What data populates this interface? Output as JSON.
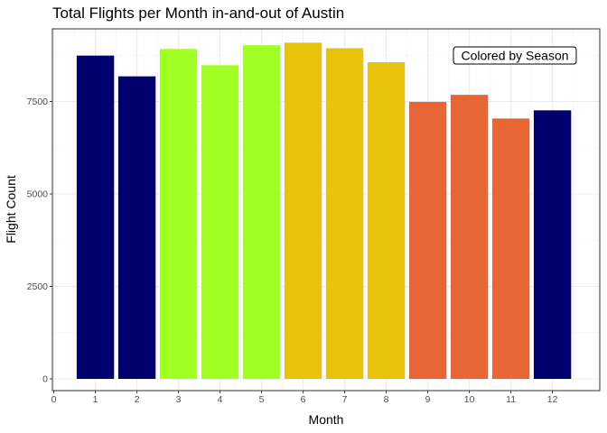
{
  "chart_data": {
    "type": "bar",
    "title": "Total Flights per Month in-and-out of Austin",
    "xlabel": "Month",
    "ylabel": "Flight Count",
    "categories": [
      1,
      2,
      3,
      4,
      5,
      6,
      7,
      8,
      9,
      10,
      11,
      12
    ],
    "values": [
      8740,
      8180,
      8920,
      8480,
      9020,
      9090,
      8940,
      8560,
      7490,
      7680,
      7040,
      7260
    ],
    "colors": [
      "#00006e",
      "#00006e",
      "#a2ff22",
      "#a2ff22",
      "#a2ff22",
      "#e8c20c",
      "#e8c20c",
      "#e8c20c",
      "#e86535",
      "#e86535",
      "#e86535",
      "#00006e"
    ],
    "xlim": [
      0,
      13
    ],
    "ylim": [
      0,
      9500
    ],
    "x_ticks": [
      0,
      1,
      2,
      3,
      4,
      5,
      6,
      7,
      8,
      9,
      10,
      11,
      12
    ],
    "y_ticks": [
      0,
      2500,
      5000,
      7500
    ],
    "grid": true,
    "annotation": "Colored by Season",
    "annotation_position": "top-right"
  }
}
